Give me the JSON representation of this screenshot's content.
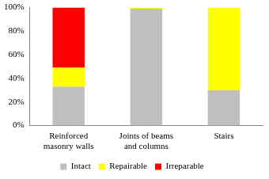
{
  "chart_data": {
    "type": "bar",
    "stacked": true,
    "categories": [
      "Reinforced masonry walls",
      "Joints of beams and columns",
      "Stairs"
    ],
    "series": [
      {
        "name": "Intact",
        "color": "#bfbfbf",
        "values": [
          33,
          99,
          30
        ]
      },
      {
        "name": "Repairable",
        "color": "#ffff00",
        "values": [
          16,
          1,
          70
        ]
      },
      {
        "name": "Irreparable",
        "color": "#ff0000",
        "values": [
          51,
          0,
          0
        ]
      }
    ],
    "ylim": [
      0,
      100
    ],
    "yticks": [
      {
        "value": 0,
        "label": "0%"
      },
      {
        "value": 20,
        "label": "20%"
      },
      {
        "value": 40,
        "label": "40%"
      },
      {
        "value": 60,
        "label": "60%"
      },
      {
        "value": 80,
        "label": "80%"
      },
      {
        "value": 100,
        "label": "100%"
      }
    ],
    "grid": false,
    "legend": "bottom"
  }
}
